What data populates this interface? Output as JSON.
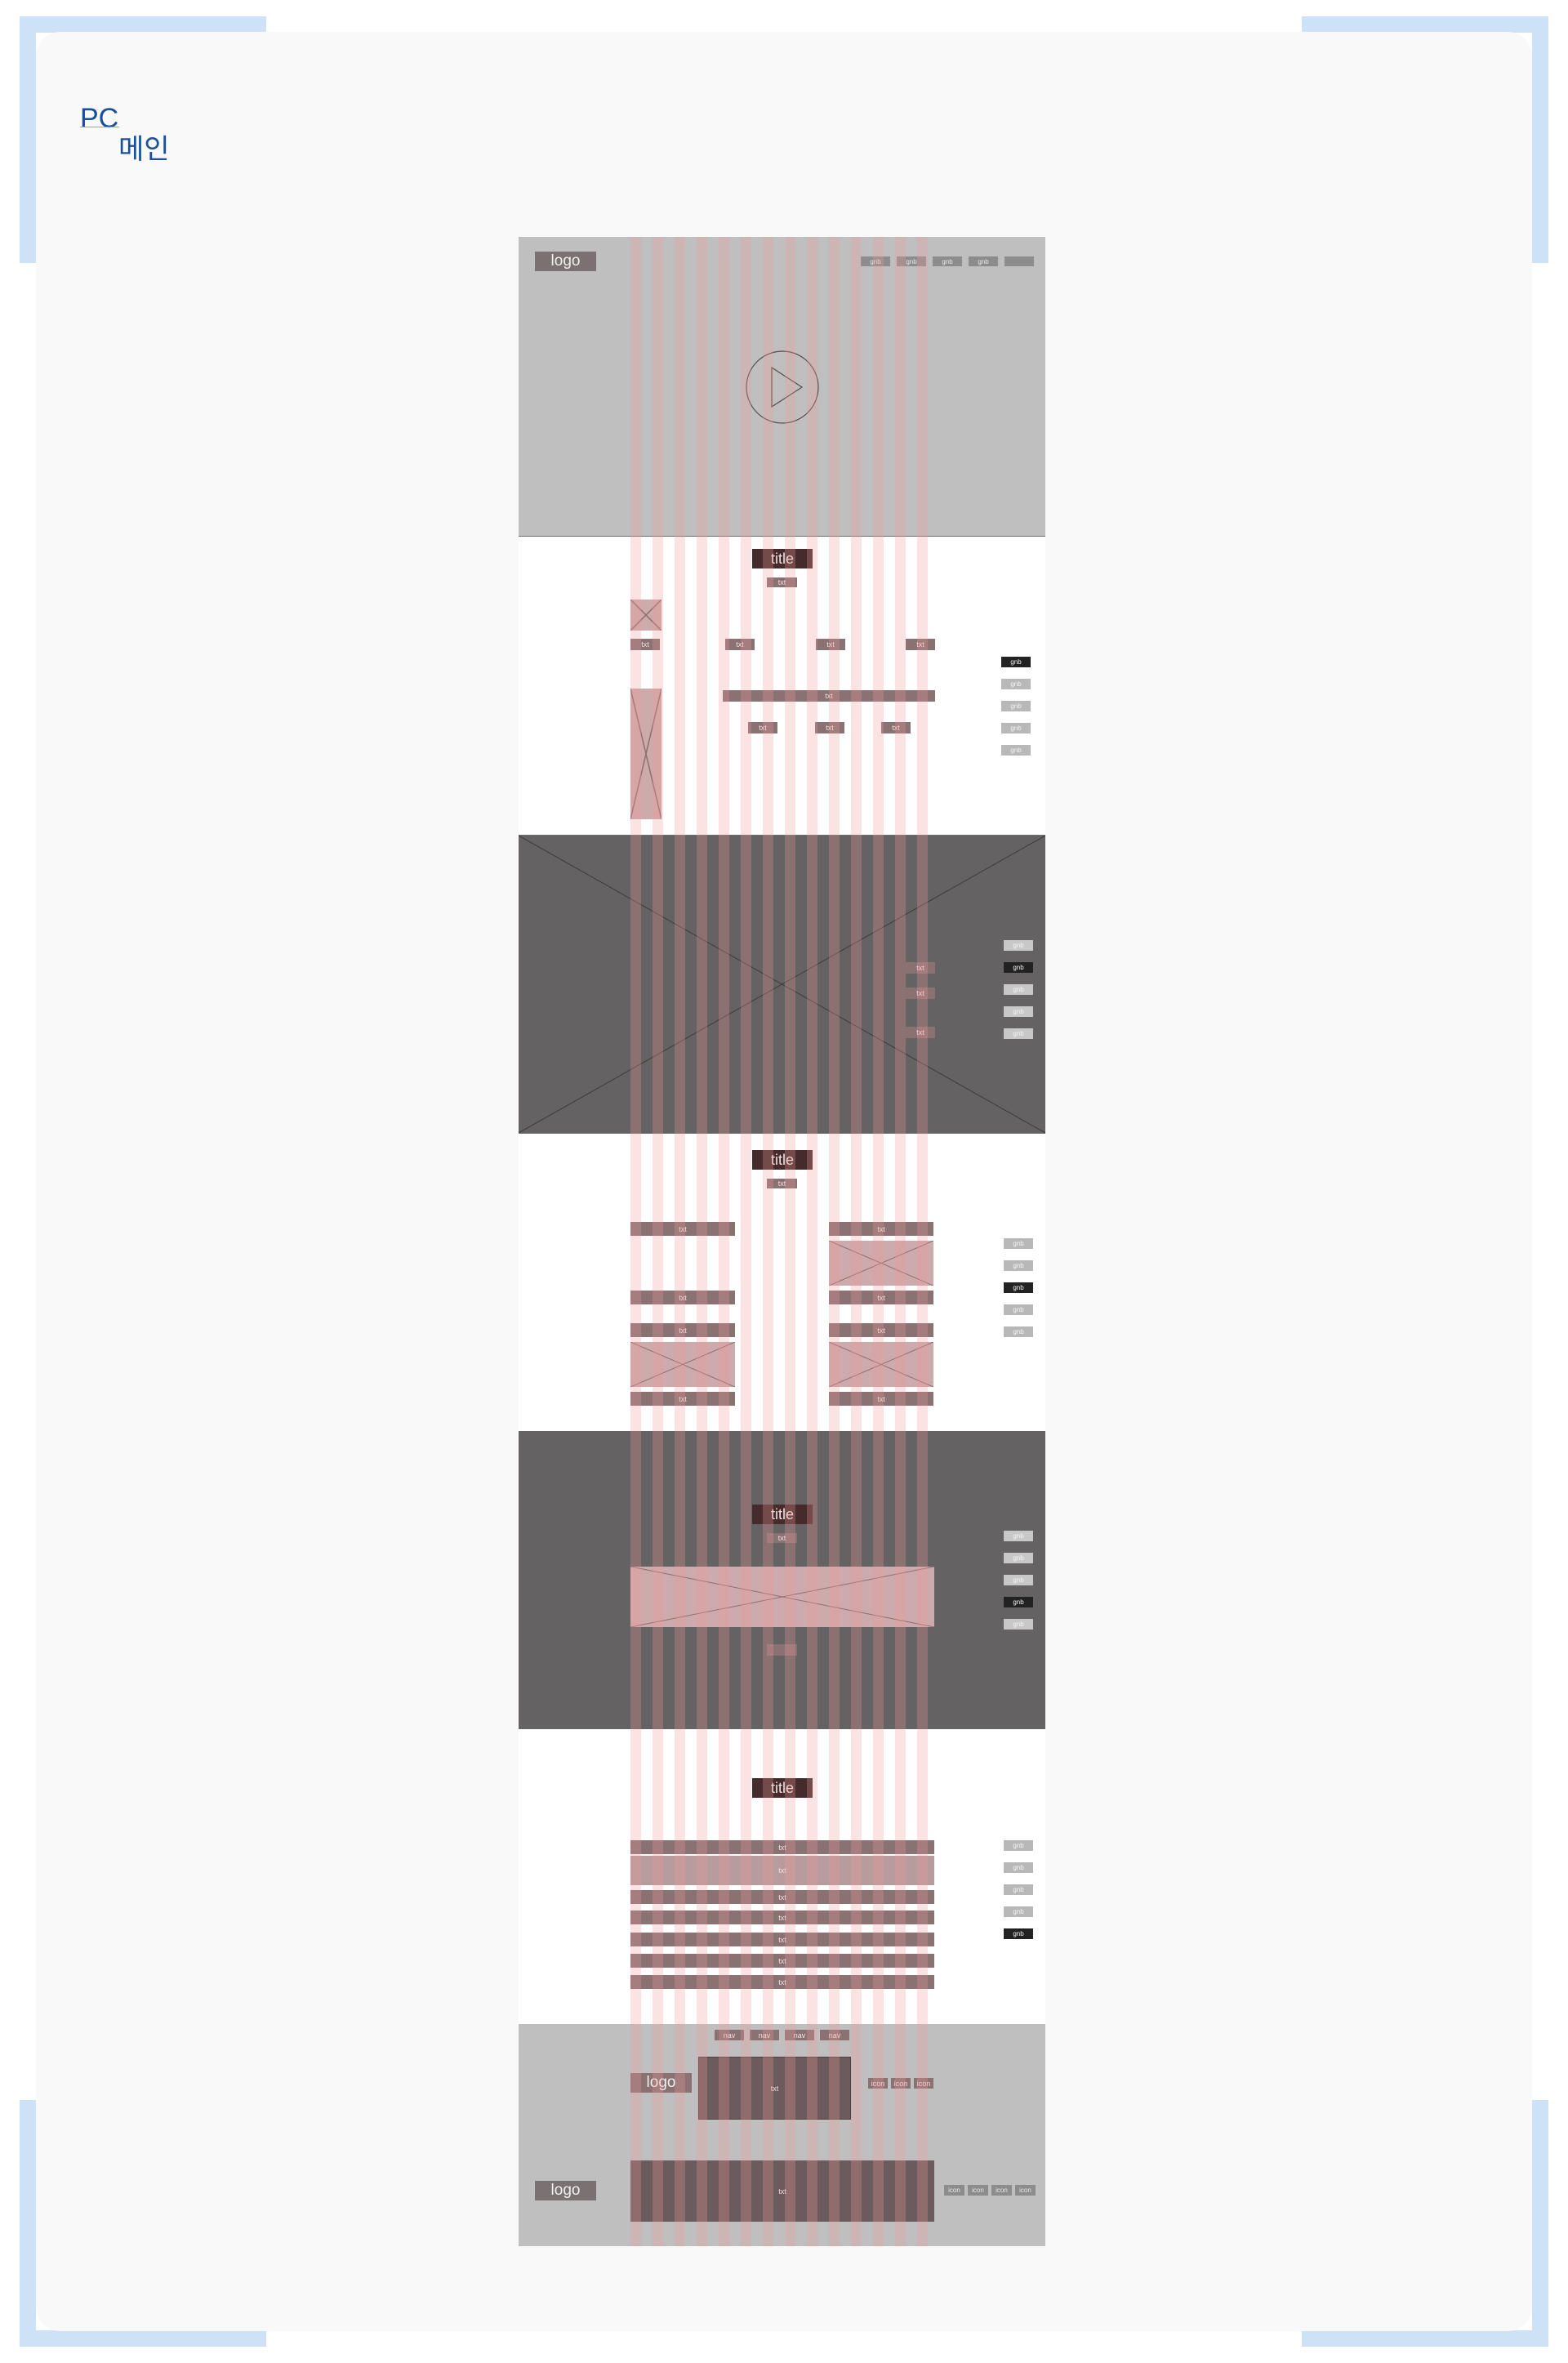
{
  "header": {
    "line1": "PC",
    "line2": "메인"
  },
  "labels": {
    "logo": "logo",
    "title": "title",
    "txt": "txt",
    "gnb": "gnb",
    "nav": "nav",
    "icon": "icon"
  },
  "colors": {
    "corner_accent": "#cde2f7",
    "card_background": "#f9f9f9",
    "header_text": "#1a4f9c",
    "grid_overlay": "#f29b9b",
    "dark_section": "#646262",
    "gray_section": "#bfbfbf"
  },
  "icons": [
    "play-icon"
  ]
}
